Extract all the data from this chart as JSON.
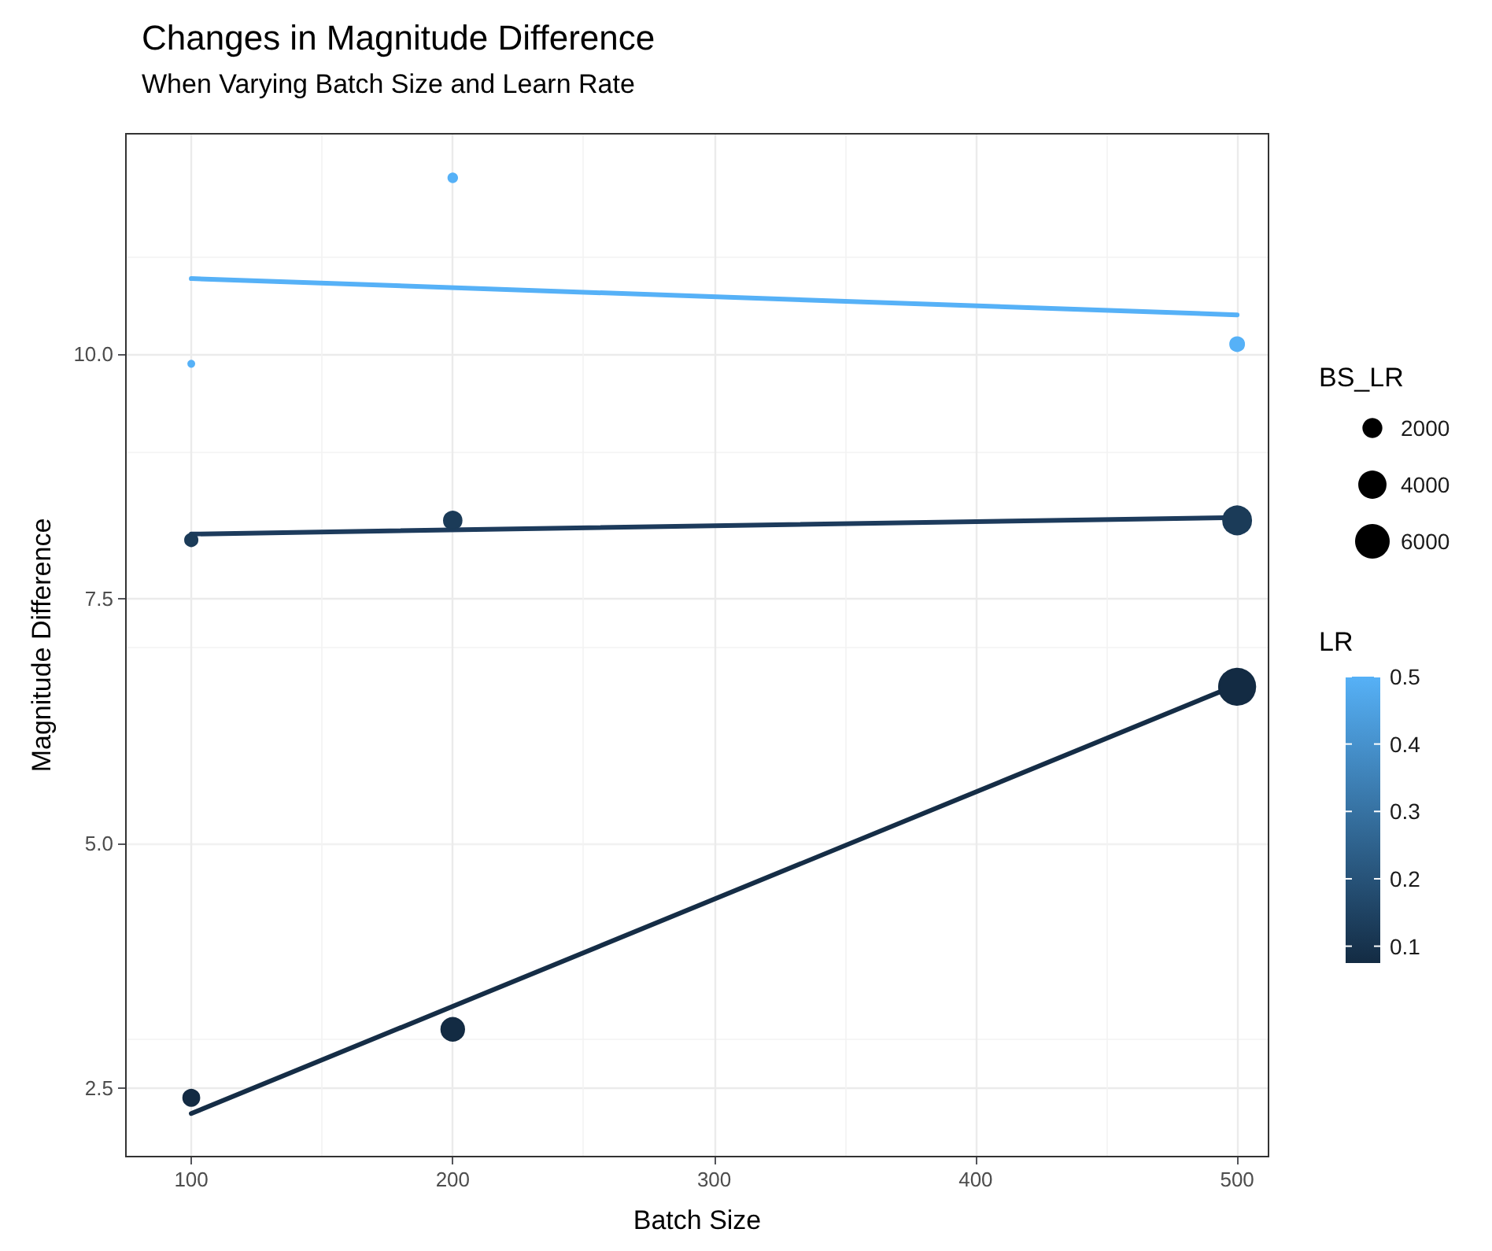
{
  "chart_data": {
    "type": "bubble",
    "title": "Changes in Magnitude Difference",
    "subtitle": "When Varying Batch Size and Learn Rate",
    "xlabel": "Batch Size",
    "ylabel": "Magnitude Difference",
    "legend_title": "BS_LR",
    "clabel": "LR",
    "xlim": [
      75,
      512
    ],
    "ylim": [
      1.8,
      12.25
    ],
    "xticks": [
      100,
      200,
      300,
      400,
      500
    ],
    "yticks": [
      2.5,
      {
        "value": 5,
        "label": "5.0"
      },
      7.5,
      {
        "value": 10,
        "label": "10.0"
      }
    ],
    "grid": true,
    "clim": [
      0.075,
      0.5
    ],
    "cticks": [
      0.1,
      0.2,
      0.3,
      0.4,
      0.5
    ],
    "size_legend": [
      2000,
      4000,
      6000
    ],
    "series": [
      {
        "marker": "circle",
        "colors": [
          "#56b1f7",
          "#56b1f7",
          "#56b1f7",
          "#1b3b58",
          "#1b3b58",
          "#1b3b58",
          "#132b43",
          "#132b43",
          "#132b43"
        ],
        "x": [
          100,
          200,
          500,
          100,
          200,
          500,
          100,
          200,
          500
        ],
        "values": [
          9.9,
          11.8,
          10.1,
          8.1,
          8.3,
          8.3,
          2.4,
          3.1,
          6.6
        ],
        "sizes": [
          200,
          400,
          1000,
          800,
          1600,
          4000,
          1333,
          2667,
          6667
        ],
        "cvalues": [
          0.5,
          0.5,
          0.5,
          0.125,
          0.125,
          0.125,
          0.075,
          0.075,
          0.075
        ]
      },
      {
        "type": "line",
        "marker": "none",
        "color": "#56b1f7",
        "x": [
          100,
          500
        ],
        "values": [
          10.77,
          10.4
        ]
      },
      {
        "type": "line",
        "marker": "none",
        "color": "#1d3b5c",
        "x": [
          100,
          500
        ],
        "values": [
          8.16,
          8.33
        ]
      },
      {
        "type": "line",
        "marker": "none",
        "color": "#152d46",
        "x": [
          100,
          500
        ],
        "values": [
          2.24,
          6.62
        ]
      }
    ]
  }
}
